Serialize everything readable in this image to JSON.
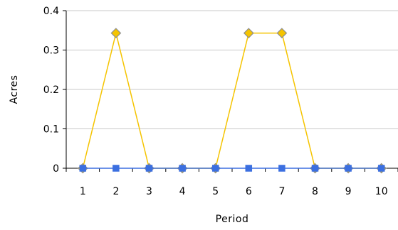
{
  "chart_data": {
    "type": "line",
    "title": "",
    "xlabel": "Period",
    "ylabel": "Acres",
    "categories": [
      "1",
      "2",
      "3",
      "4",
      "5",
      "6",
      "7",
      "8",
      "9",
      "10"
    ],
    "ylim": [
      0,
      0.4
    ],
    "yticks": [
      "0",
      "0.1",
      "0.2",
      "0.3",
      "0.4"
    ],
    "grid": true,
    "legend": "none",
    "series": [
      {
        "color": "#f5c400",
        "marker": "diamond",
        "marker_fill": "#f5c400",
        "marker_stroke": "#8c8c8c",
        "values": [
          0,
          0.343,
          0,
          0,
          0,
          0.343,
          0.343,
          0,
          0,
          0
        ]
      },
      {
        "color": "#3b6fe0",
        "marker": "square",
        "marker_fill": "#3b6fe0",
        "values": [
          0,
          0,
          0,
          0,
          0,
          0,
          0,
          0,
          0,
          0
        ]
      }
    ]
  }
}
